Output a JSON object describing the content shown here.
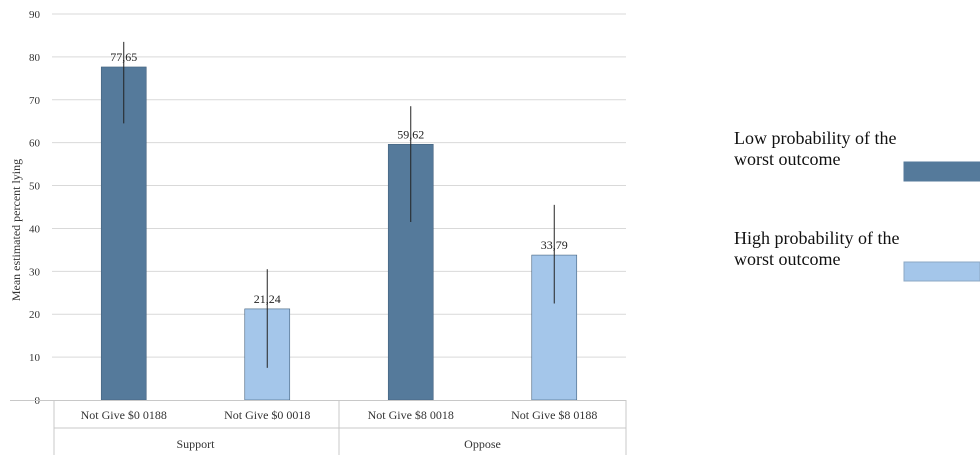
{
  "chart_data": {
    "type": "bar",
    "title": "",
    "ylabel": "Mean estimated percent lying",
    "xlabel": "",
    "ylim": [
      0,
      90
    ],
    "ytick_step": 10,
    "grid": true,
    "legend_position": "right",
    "categories": [
      "Not Give $0 0188",
      "Not Give $0 0018",
      "Not Give $8 0018",
      "Not Give $8 0188"
    ],
    "groups": [
      {
        "label": "Support",
        "categories": [
          0,
          1
        ]
      },
      {
        "label": "Oppose",
        "categories": [
          2,
          3
        ]
      }
    ],
    "values": [
      77.65,
      21.24,
      59.62,
      33.79
    ],
    "value_labels": [
      "77,65",
      "21,24",
      "59,62",
      "33,79"
    ],
    "error_low": [
      64.5,
      7.5,
      41.5,
      22.5
    ],
    "error_high": [
      83.5,
      30.5,
      68.5,
      45.5
    ],
    "bar_series": [
      0,
      1,
      0,
      1
    ],
    "series": [
      {
        "name_lines": [
          "Low probability of the",
          "worst outcome"
        ],
        "color": "#557a9b"
      },
      {
        "name_lines": [
          "High probability of the",
          "worst outcome"
        ],
        "color": "#a4c6ea"
      }
    ]
  }
}
